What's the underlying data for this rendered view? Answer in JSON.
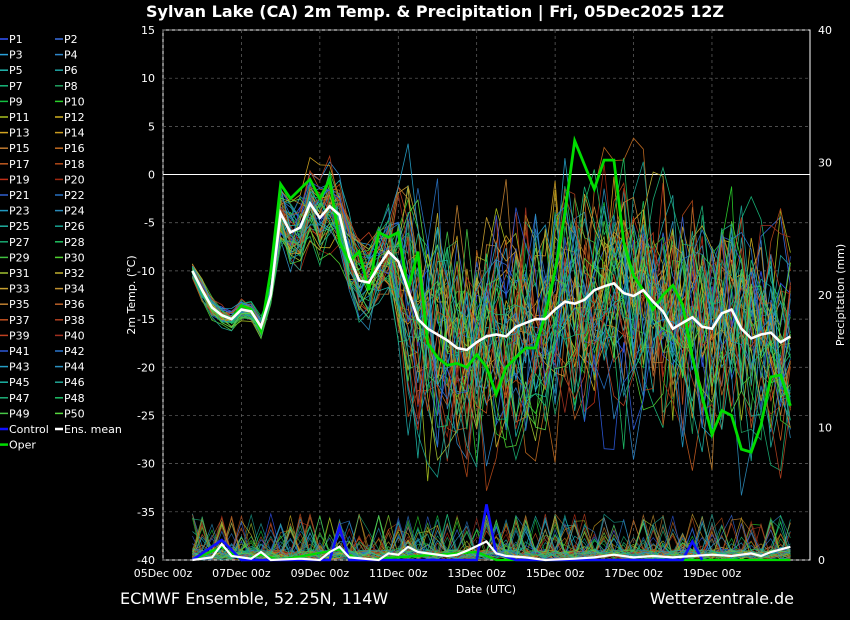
{
  "chart_data": {
    "type": "line",
    "title": "Sylvan Lake  (CA)  2m Temp. & Precipitation | Fri, 05Dec2025 12Z",
    "xlabel": "Date (UTC)",
    "ylabel": "2m Temp. (°C)",
    "y2label": "Precipitation (mm)",
    "ylim": [
      -40,
      15
    ],
    "y2lim": [
      0,
      40
    ],
    "yticks": [
      "15",
      "10",
      "5",
      "0",
      "-5",
      "-10",
      "-15",
      "-20",
      "-25",
      "-30",
      "-35",
      "-40"
    ],
    "y2ticks": [
      "40",
      "30",
      "20",
      "10",
      "0"
    ],
    "xticks": [
      "05Dec 00z",
      "07Dec 00z",
      "09Dec 00z",
      "11Dec 00z",
      "13Dec 00z",
      "15Dec 00z",
      "17Dec 00z",
      "19Dec 00z"
    ],
    "x_start": "2025-12-05T00:00Z",
    "x_end": "2025-12-21T12:00Z",
    "grid": true,
    "legend_position": "left",
    "legend": [
      "P1",
      "P2",
      "P3",
      "P4",
      "P5",
      "P6",
      "P7",
      "P8",
      "P9",
      "P10",
      "P11",
      "P12",
      "P13",
      "P14",
      "P15",
      "P16",
      "P17",
      "P18",
      "P19",
      "P20",
      "P21",
      "P22",
      "P23",
      "P24",
      "P25",
      "P26",
      "P27",
      "P28",
      "P29",
      "P30",
      "P31",
      "P32",
      "P33",
      "P34",
      "P35",
      "P36",
      "P37",
      "P38",
      "P39",
      "P40",
      "P41",
      "P42",
      "P43",
      "P44",
      "P45",
      "P46",
      "P47",
      "P48",
      "P49",
      "P50",
      "Control",
      "Ens. mean",
      "Oper"
    ],
    "series_colors": [
      "#3355ff",
      "#3b6fe0",
      "#2aa0d8",
      "#2f86c8",
      "#22b8b0",
      "#1fa3a3",
      "#18b87a",
      "#20a060",
      "#12c040",
      "#2bd02b",
      "#a8c020",
      "#d0b020",
      "#d2a420",
      "#c89a20",
      "#c07a30",
      "#c06a20",
      "#c05a20",
      "#b04818",
      "#c03018",
      "#a02810",
      "#3060d0",
      "#2870c0",
      "#2098c0",
      "#2a8ab8",
      "#20b0a0",
      "#18a090",
      "#18a870",
      "#20c060",
      "#40c040",
      "#50d030",
      "#a0c030",
      "#c0b030",
      "#c8a030",
      "#c09030",
      "#c08030",
      "#b86028",
      "#c05020",
      "#b04020",
      "#c04020",
      "#a03020",
      "#2c58d8",
      "#2a76cc",
      "#259ec6",
      "#2c90c0",
      "#1cb4a4",
      "#22a494",
      "#1eb078",
      "#1ec068",
      "#48c848",
      "#58d840"
    ],
    "control_color": "#1010ff",
    "mean_color": "#ffffff",
    "oper_color": "#00dd00",
    "ens_mean": [
      [
        "2025-12-05T18:00Z",
        -10
      ],
      [
        "2025-12-06T00:00Z",
        -12
      ],
      [
        "2025-12-06T06:00Z",
        -13.8
      ],
      [
        "2025-12-06T12:00Z",
        -14.6
      ],
      [
        "2025-12-06T18:00Z",
        -15
      ],
      [
        "2025-12-07T00:00Z",
        -14
      ],
      [
        "2025-12-07T06:00Z",
        -14.2
      ],
      [
        "2025-12-07T12:00Z",
        -15.8
      ],
      [
        "2025-12-07T18:00Z",
        -12.5
      ],
      [
        "2025-12-08T00:00Z",
        -4
      ],
      [
        "2025-12-08T06:00Z",
        -6
      ],
      [
        "2025-12-08T12:00Z",
        -5.5
      ],
      [
        "2025-12-08T18:00Z",
        -3
      ],
      [
        "2025-12-09T00:00Z",
        -4.5
      ],
      [
        "2025-12-09T06:00Z",
        -3.3
      ],
      [
        "2025-12-09T12:00Z",
        -4.2
      ],
      [
        "2025-12-09T18:00Z",
        -8.5
      ],
      [
        "2025-12-10T00:00Z",
        -11
      ],
      [
        "2025-12-10T06:00Z",
        -11.2
      ],
      [
        "2025-12-10T12:00Z",
        -9.5
      ],
      [
        "2025-12-10T18:00Z",
        -8
      ],
      [
        "2025-12-11T00:00Z",
        -9
      ],
      [
        "2025-12-11T06:00Z",
        -12
      ],
      [
        "2025-12-11T12:00Z",
        -15
      ],
      [
        "2025-12-11T18:00Z",
        -16
      ],
      [
        "2025-12-12T00:00Z",
        -16.6
      ],
      [
        "2025-12-12T06:00Z",
        -17.2
      ],
      [
        "2025-12-12T12:00Z",
        -18
      ],
      [
        "2025-12-12T18:00Z",
        -18.2
      ],
      [
        "2025-12-13T00:00Z",
        -17.4
      ],
      [
        "2025-12-13T06:00Z",
        -16.8
      ],
      [
        "2025-12-13T12:00Z",
        -16.6
      ],
      [
        "2025-12-13T18:00Z",
        -16.8
      ],
      [
        "2025-12-14T00:00Z",
        -15.8
      ],
      [
        "2025-12-14T06:00Z",
        -15.4
      ],
      [
        "2025-12-14T12:00Z",
        -15
      ],
      [
        "2025-12-14T18:00Z",
        -15
      ],
      [
        "2025-12-15T00:00Z",
        -14
      ],
      [
        "2025-12-15T06:00Z",
        -13.2
      ],
      [
        "2025-12-15T12:00Z",
        -13.4
      ],
      [
        "2025-12-15T18:00Z",
        -13
      ],
      [
        "2025-12-16T00:00Z",
        -12
      ],
      [
        "2025-12-16T06:00Z",
        -11.6
      ],
      [
        "2025-12-16T12:00Z",
        -11.3
      ],
      [
        "2025-12-16T18:00Z",
        -12.3
      ],
      [
        "2025-12-17T00:00Z",
        -12.6
      ],
      [
        "2025-12-17T06:00Z",
        -12
      ],
      [
        "2025-12-17T12:00Z",
        -13.2
      ],
      [
        "2025-12-17T18:00Z",
        -14.2
      ],
      [
        "2025-12-18T00:00Z",
        -16
      ],
      [
        "2025-12-18T06:00Z",
        -15.4
      ],
      [
        "2025-12-18T12:00Z",
        -14.8
      ],
      [
        "2025-12-18T18:00Z",
        -15.8
      ],
      [
        "2025-12-19T00:00Z",
        -16
      ],
      [
        "2025-12-19T06:00Z",
        -14.4
      ],
      [
        "2025-12-19T12:00Z",
        -14
      ],
      [
        "2025-12-19T18:00Z",
        -16
      ],
      [
        "2025-12-20T00:00Z",
        -17
      ],
      [
        "2025-12-20T06:00Z",
        -16.6
      ],
      [
        "2025-12-20T12:00Z",
        -16.4
      ],
      [
        "2025-12-20T18:00Z",
        -17.4
      ],
      [
        "2025-12-21T00:00Z",
        -16.8
      ]
    ],
    "oper": [
      [
        "2025-12-05T18:00Z",
        -10
      ],
      [
        "2025-12-06T00:00Z",
        -12
      ],
      [
        "2025-12-06T06:00Z",
        -13.8
      ],
      [
        "2025-12-06T12:00Z",
        -14.6
      ],
      [
        "2025-12-06T18:00Z",
        -15
      ],
      [
        "2025-12-07T00:00Z",
        -13.6
      ],
      [
        "2025-12-07T06:00Z",
        -14
      ],
      [
        "2025-12-07T12:00Z",
        -16.2
      ],
      [
        "2025-12-07T18:00Z",
        -10
      ],
      [
        "2025-12-08T00:00Z",
        -1
      ],
      [
        "2025-12-08T06:00Z",
        -2.5
      ],
      [
        "2025-12-08T12:00Z",
        -1.5
      ],
      [
        "2025-12-08T18:00Z",
        -0.5
      ],
      [
        "2025-12-09T00:00Z",
        -2.5
      ],
      [
        "2025-12-09T06:00Z",
        -0.5
      ],
      [
        "2025-12-09T12:00Z",
        -7
      ],
      [
        "2025-12-09T18:00Z",
        -9
      ],
      [
        "2025-12-10T00:00Z",
        -8
      ],
      [
        "2025-12-10T06:00Z",
        -12
      ],
      [
        "2025-12-10T12:00Z",
        -6
      ],
      [
        "2025-12-10T18:00Z",
        -6.5
      ],
      [
        "2025-12-11T00:00Z",
        -6
      ],
      [
        "2025-12-11T06:00Z",
        -12
      ],
      [
        "2025-12-11T12:00Z",
        -8
      ],
      [
        "2025-12-11T18:00Z",
        -17.5
      ],
      [
        "2025-12-12T00:00Z",
        -19
      ],
      [
        "2025-12-12T06:00Z",
        -19.8
      ],
      [
        "2025-12-12T12:00Z",
        -19.6
      ],
      [
        "2025-12-12T18:00Z",
        -20
      ],
      [
        "2025-12-13T00:00Z",
        -18.7
      ],
      [
        "2025-12-13T06:00Z",
        -20
      ],
      [
        "2025-12-13T12:00Z",
        -22.8
      ],
      [
        "2025-12-13T18:00Z",
        -20
      ],
      [
        "2025-12-14T00:00Z",
        -19
      ],
      [
        "2025-12-14T06:00Z",
        -18
      ],
      [
        "2025-12-14T12:00Z",
        -18
      ],
      [
        "2025-12-14T18:00Z",
        -14.5
      ],
      [
        "2025-12-15T00:00Z",
        -10
      ],
      [
        "2025-12-15T06:00Z",
        -4
      ],
      [
        "2025-12-15T12:00Z",
        3.5
      ],
      [
        "2025-12-15T18:00Z",
        1
      ],
      [
        "2025-12-16T00:00Z",
        -1.5
      ],
      [
        "2025-12-16T06:00Z",
        1.5
      ],
      [
        "2025-12-16T12:00Z",
        1.5
      ],
      [
        "2025-12-16T18:00Z",
        -7
      ],
      [
        "2025-12-17T00:00Z",
        -10.5
      ],
      [
        "2025-12-17T06:00Z",
        -12
      ],
      [
        "2025-12-17T12:00Z",
        -14
      ],
      [
        "2025-12-17T18:00Z",
        -12.5
      ],
      [
        "2025-12-18T00:00Z",
        -11.5
      ],
      [
        "2025-12-18T06:00Z",
        -13.5
      ],
      [
        "2025-12-18T12:00Z",
        -19
      ],
      [
        "2025-12-18T18:00Z",
        -23
      ],
      [
        "2025-12-19T00:00Z",
        -27
      ],
      [
        "2025-12-19T06:00Z",
        -24.5
      ],
      [
        "2025-12-19T12:00Z",
        -25
      ],
      [
        "2025-12-19T18:00Z",
        -28.5
      ],
      [
        "2025-12-20T00:00Z",
        -28.8
      ],
      [
        "2025-12-20T06:00Z",
        -26
      ],
      [
        "2025-12-20T12:00Z",
        -21
      ],
      [
        "2025-12-20T18:00Z",
        -20.8
      ],
      [
        "2025-12-21T00:00Z",
        -24
      ]
    ],
    "precip_mean": [
      [
        "2025-12-05T18:00Z",
        0
      ],
      [
        "2025-12-06T06:00Z",
        0.2
      ],
      [
        "2025-12-06T12:00Z",
        1.2
      ],
      [
        "2025-12-06T18:00Z",
        0.3
      ],
      [
        "2025-12-07T06:00Z",
        0.1
      ],
      [
        "2025-12-07T12:00Z",
        0.6
      ],
      [
        "2025-12-07T18:00Z",
        0
      ],
      [
        "2025-12-08T12:00Z",
        0.1
      ],
      [
        "2025-12-09T00:00Z",
        0
      ],
      [
        "2025-12-09T06:00Z",
        0.6
      ],
      [
        "2025-12-09T12:00Z",
        1
      ],
      [
        "2025-12-09T18:00Z",
        0.2
      ],
      [
        "2025-12-10T12:00Z",
        0
      ],
      [
        "2025-12-10T18:00Z",
        0.5
      ],
      [
        "2025-12-11T00:00Z",
        0.4
      ],
      [
        "2025-12-11T06:00Z",
        1
      ],
      [
        "2025-12-11T12:00Z",
        0.6
      ],
      [
        "2025-12-11T18:00Z",
        0.5
      ],
      [
        "2025-12-12T06:00Z",
        0.3
      ],
      [
        "2025-12-12T12:00Z",
        0.4
      ],
      [
        "2025-12-12T18:00Z",
        0.7
      ],
      [
        "2025-12-13T06:00Z",
        1.4
      ],
      [
        "2025-12-13T12:00Z",
        0.5
      ],
      [
        "2025-12-13T18:00Z",
        0.3
      ],
      [
        "2025-12-14T06:00Z",
        0.2
      ],
      [
        "2025-12-14T18:00Z",
        0
      ],
      [
        "2025-12-15T12:00Z",
        0.1
      ],
      [
        "2025-12-16T00:00Z",
        0.2
      ],
      [
        "2025-12-16T12:00Z",
        0.4
      ],
      [
        "2025-12-17T00:00Z",
        0.2
      ],
      [
        "2025-12-17T12:00Z",
        0.3
      ],
      [
        "2025-12-18T00:00Z",
        0.2
      ],
      [
        "2025-12-18T12:00Z",
        0.3
      ],
      [
        "2025-12-19T00:00Z",
        0.4
      ],
      [
        "2025-12-19T12:00Z",
        0.3
      ],
      [
        "2025-12-20T00:00Z",
        0.5
      ],
      [
        "2025-12-20T06:00Z",
        0.3
      ],
      [
        "2025-12-20T12:00Z",
        0.6
      ],
      [
        "2025-12-21T00:00Z",
        1
      ]
    ],
    "precip_control": [
      [
        "2025-12-05T18:00Z",
        0
      ],
      [
        "2025-12-06T12:00Z",
        1.5
      ],
      [
        "2025-12-07T00:00Z",
        0
      ],
      [
        "2025-12-09T06:00Z",
        0
      ],
      [
        "2025-12-09T12:00Z",
        2.5
      ],
      [
        "2025-12-09T18:00Z",
        0
      ],
      [
        "2025-12-13T00:00Z",
        0
      ],
      [
        "2025-12-13T06:00Z",
        4.2
      ],
      [
        "2025-12-13T12:00Z",
        0.5
      ],
      [
        "2025-12-14T00:00Z",
        0
      ],
      [
        "2025-12-18T06:00Z",
        0
      ],
      [
        "2025-12-18T12:00Z",
        1.4
      ],
      [
        "2025-12-18T18:00Z",
        0
      ]
    ],
    "precip_oper": [
      [
        "2025-12-05T18:00Z",
        0
      ],
      [
        "2025-12-06T12:00Z",
        1
      ],
      [
        "2025-12-07T00:00Z",
        0
      ],
      [
        "2025-12-07T12:00Z",
        0.4
      ],
      [
        "2025-12-08T00:00Z",
        0
      ],
      [
        "2025-12-09T12:00Z",
        0.8
      ],
      [
        "2025-12-10T00:00Z",
        0
      ],
      [
        "2025-12-13T00:00Z",
        0.6
      ],
      [
        "2025-12-13T12:00Z",
        0
      ],
      [
        "2025-12-21T00:00Z",
        0
      ]
    ]
  },
  "footer": {
    "left": "ECMWF Ensemble, 52.25N, 114W",
    "right": "Wetterzentrale.de"
  }
}
